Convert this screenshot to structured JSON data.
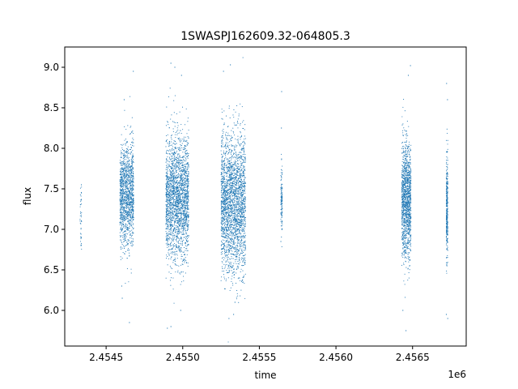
{
  "chart_data": {
    "type": "scatter",
    "title": "1SWASPJ162609.32-064805.3",
    "xlabel": "time",
    "ylabel": "flux",
    "x_offset_label": "1e6",
    "xlim": [
      2.45423,
      2.45685
    ],
    "ylim": [
      5.56,
      9.25
    ],
    "x_ticks": [
      2.4545,
      2.455,
      2.4555,
      2.456,
      2.4565
    ],
    "x_tick_labels": [
      "2.4545",
      "2.4550",
      "2.4555",
      "2.4560",
      "2.4565"
    ],
    "y_ticks": [
      6.0,
      6.5,
      7.0,
      7.5,
      8.0,
      8.5,
      9.0
    ],
    "y_tick_labels": [
      "6.0",
      "6.5",
      "7.0",
      "7.5",
      "8.0",
      "8.5",
      "9.0"
    ],
    "grid": false,
    "marker_color": "#1f77b4",
    "series": [
      {
        "clusters": [
          {
            "x_range": [
              2.45433,
              2.45434
            ],
            "center": 7.2,
            "spread": 0.25,
            "count": 40,
            "outliers": [
              6.8,
              7.55
            ]
          },
          {
            "x_range": [
              2.45459,
              2.45468
            ],
            "center": 7.42,
            "spread": 0.32,
            "count": 1300,
            "outliers": [
              8.95,
              8.6,
              6.15,
              5.85,
              6.3
            ]
          },
          {
            "x_range": [
              2.45489,
              2.45504
            ],
            "center": 7.38,
            "spread": 0.38,
            "count": 2200,
            "outliers": [
              9.0,
              9.05,
              8.9,
              5.8,
              5.78,
              6.0
            ]
          },
          {
            "x_range": [
              2.45525,
              2.45541
            ],
            "center": 7.32,
            "spread": 0.42,
            "count": 2400,
            "outliers": [
              9.03,
              8.95,
              5.9,
              5.95,
              6.1
            ]
          },
          {
            "x_range": [
              2.45564,
              2.45565
            ],
            "center": 7.38,
            "spread": 0.22,
            "count": 120,
            "outliers": [
              8.7,
              8.25,
              6.85
            ]
          },
          {
            "x_range": [
              2.45643,
              2.45649
            ],
            "center": 7.35,
            "spread": 0.35,
            "count": 1300,
            "outliers": [
              9.02,
              8.9,
              5.75,
              6.0
            ]
          },
          {
            "x_range": [
              2.45672,
              2.45673
            ],
            "center": 7.28,
            "spread": 0.3,
            "count": 350,
            "outliers": [
              8.8,
              8.6,
              5.95,
              5.9
            ]
          }
        ]
      }
    ]
  }
}
